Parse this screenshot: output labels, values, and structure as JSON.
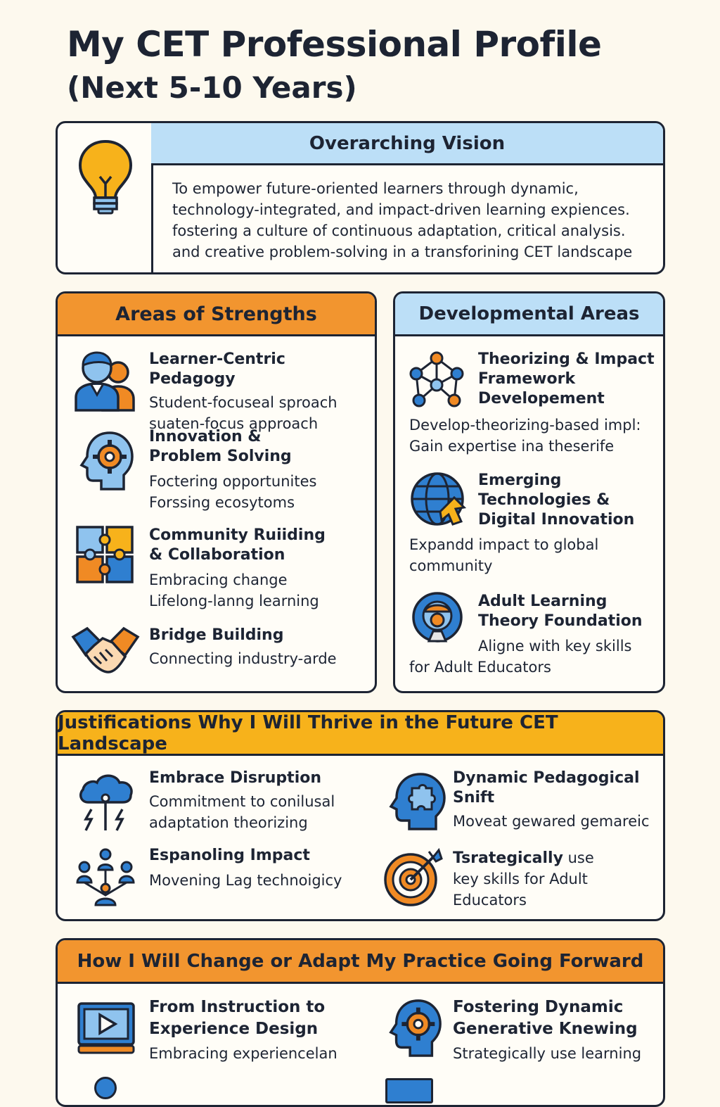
{
  "page": {
    "title": "My CET Professional Profile",
    "subtitle": "(Next 5-10 Years)"
  },
  "vision": {
    "header": "Overarching Vision",
    "icon": "lightbulb-icon",
    "lines": [
      "To empower future-oriented learners through dynamic,",
      "technology-integrated, and impact-driven learning expiences.",
      "fostering a culture of continuous adaptation, critical analysis.",
      "and creative problem-solving in a transforining CET landscape"
    ]
  },
  "strengths": {
    "header": "Areas of Strengths",
    "items": [
      {
        "icon": "people-icon",
        "title_lines": [
          "Learner-Centric Pedagogy"
        ],
        "desc_lines": [
          "Student-focuseal sproach",
          "suaten-focus approach"
        ]
      },
      {
        "icon": "head-gear-icon",
        "title_lines": [
          "Innovation &",
          "Problem Solving"
        ],
        "desc_lines": [
          "Foctering opportunites",
          "Forssing ecosytoms"
        ]
      },
      {
        "icon": "puzzle-icon",
        "title_lines": [
          "Community Ruiiding",
          "& Collaboration"
        ],
        "desc_lines": [
          "Embracing change",
          "Lifelong-lanng learning"
        ]
      },
      {
        "icon": "handshake-icon",
        "title_lines": [
          "Bridge Building"
        ],
        "desc_lines": [
          "Connecting industry-arde"
        ]
      }
    ]
  },
  "developmental": {
    "header": "Developmental Areas",
    "items": [
      {
        "icon": "network-icon",
        "title_lines": [
          "Theorizing & Impact",
          "Framework",
          "Developement"
        ],
        "desc_lines": [
          "Develop-theorizing-based impl:",
          "Gain expertise ina theserife"
        ]
      },
      {
        "icon": "globe-icon",
        "title_lines": [
          "Emerging",
          "Technologies &",
          "Digital Innovation"
        ],
        "desc_lines": [
          "Expandd impact to global",
          "community"
        ]
      },
      {
        "icon": "adult-learner-icon",
        "title_lines": [
          "Adult Learning",
          "Theory Foundation"
        ],
        "desc_lines": [
          "Aligne with key skills",
          "for Adult Educators"
        ]
      }
    ]
  },
  "justifications": {
    "header": "Justifications Why I Will Thrive in the Future CET Landscape",
    "items": [
      {
        "icon": "cloud-lightning-icon",
        "title_lines": [
          "Embrace Disruption"
        ],
        "desc_lines": [
          "Commitment to conilusal",
          "adaptation theorizing"
        ]
      },
      {
        "icon": "head-puzzle-icon",
        "title_lines": [
          "Dynamic Pedagogical",
          "Snift"
        ],
        "desc_lines": [
          "Moveat gewared gemareic"
        ]
      },
      {
        "icon": "team-network-icon",
        "title_lines": [
          "Espanoling Impact"
        ],
        "desc_lines": [
          "Movening Lag technoigicy"
        ]
      },
      {
        "icon": "target-icon",
        "title_bold": "Tsrategically",
        "title_rest": " use",
        "desc_lines": [
          "key skills for Adult",
          "Educators"
        ]
      }
    ]
  },
  "adapt": {
    "header": "How I Will Change or Adapt My Practice Going Forward",
    "items": [
      {
        "icon": "video-play-icon",
        "title_lines": [
          "From Instruction to",
          "Experience Design"
        ],
        "desc_lines": [
          "Embracing experiencelan"
        ]
      },
      {
        "icon": "head-gear-icon",
        "title_lines": [
          "Fostering Dynamic",
          "Generative Knewing"
        ],
        "desc_lines": [
          "Strategically use learning"
        ]
      }
    ]
  },
  "colors": {
    "ink": "#1d2433",
    "blue_header": "#bcdff7",
    "orange_header": "#f2952f",
    "yellow_header": "#f7b21b",
    "icon_blue": "#2f7fd0",
    "icon_orange": "#f08a24",
    "background": "#fdf9ee"
  }
}
